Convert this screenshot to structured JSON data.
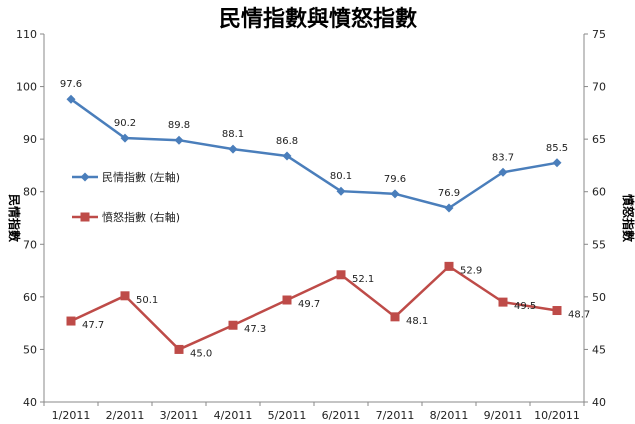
{
  "chart_data": {
    "type": "line",
    "title": "民情指數與憤怒指數",
    "categories": [
      "1/2011",
      "2/2011",
      "3/2011",
      "4/2011",
      "5/2011",
      "6/2011",
      "7/2011",
      "8/2011",
      "9/2011",
      "10/2011"
    ],
    "ylabel_left": "民情指數",
    "ylabel_right": "憤怒指數",
    "ylim_left": [
      40,
      110
    ],
    "ylim_right": [
      40,
      75
    ],
    "yticks_left": [
      40,
      50,
      60,
      70,
      80,
      90,
      100,
      110
    ],
    "yticks_right": [
      40,
      45,
      50,
      55,
      60,
      65,
      70,
      75
    ],
    "grid": false,
    "legend_position": "left-middle",
    "series": [
      {
        "name": "民情指數 (左軸)",
        "axis": "left",
        "color": "#4a7ebb",
        "marker": "diamond",
        "values": [
          97.6,
          90.2,
          89.8,
          88.1,
          86.8,
          80.1,
          79.6,
          76.9,
          83.7,
          85.5
        ],
        "labels": [
          "97.6",
          "90.2",
          "89.8",
          "88.1",
          "86.8",
          "80.1",
          "79.6",
          "76.9",
          "83.7",
          "85.5"
        ]
      },
      {
        "name": "憤怒指數 (右軸)",
        "axis": "right",
        "color": "#be4b48",
        "marker": "square",
        "values": [
          47.7,
          50.1,
          45.0,
          47.3,
          49.7,
          52.1,
          48.1,
          52.9,
          49.5,
          48.7
        ],
        "labels": [
          "47.7",
          "50.1",
          "45.0",
          "47.3",
          "49.7",
          "52.1",
          "48.1",
          "52.9",
          "49.5",
          "48.7"
        ]
      }
    ]
  }
}
